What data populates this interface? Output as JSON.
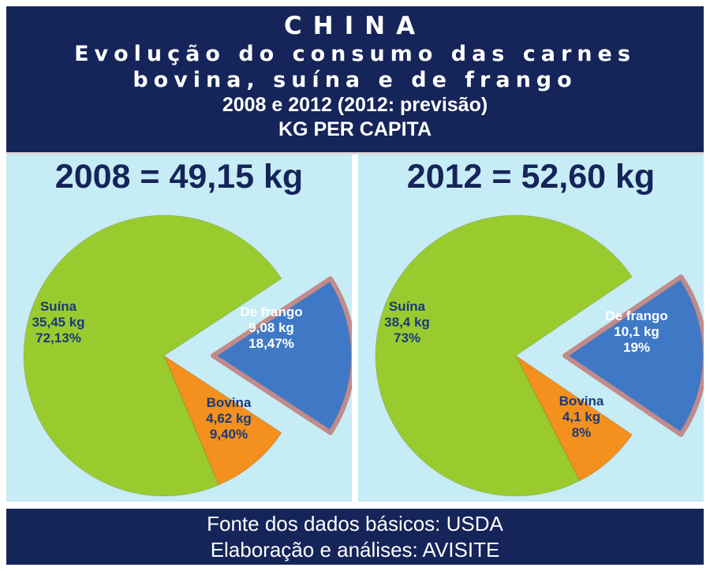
{
  "header": {
    "country": "CHINA",
    "line1": "Evolução do consumo das carnes",
    "line2": "bovina, suína e de frango",
    "line3": "2008 e 2012 (2012: previsão)",
    "line4": "KG PER CAPITA"
  },
  "footer": {
    "line1": "Fonte dos dados básicos: USDA",
    "line2": "Elaboração e análises: AVISITE"
  },
  "colors": {
    "suina": "#9acb2e",
    "frango": "#3f79c6",
    "bovina": "#f3901e",
    "header_bg": "#152459",
    "panel_bg": "#c6ecf5"
  },
  "chart_data": [
    {
      "type": "pie",
      "title": "2008 = 49,15 kg",
      "slices": [
        {
          "name": "De frango",
          "value": 18.47,
          "kg_label": "9,08 kg",
          "pct_label": "18,47%",
          "color": "#3f79c6",
          "exploded": true
        },
        {
          "name": "Bovina",
          "value": 9.4,
          "kg_label": "4,62 kg",
          "pct_label": "9,40%",
          "color": "#f3901e",
          "exploded": false
        },
        {
          "name": "Suína",
          "value": 72.13,
          "kg_label": "35,45 kg",
          "pct_label": "72,13%",
          "color": "#9acb2e",
          "exploded": false
        }
      ]
    },
    {
      "type": "pie",
      "title": "2012 = 52,60 kg",
      "slices": [
        {
          "name": "De frango",
          "value": 19,
          "kg_label": "10,1 kg",
          "pct_label": "19%",
          "color": "#3f79c6",
          "exploded": true
        },
        {
          "name": "Bovina",
          "value": 8,
          "kg_label": "4,1 kg",
          "pct_label": "8%",
          "color": "#f3901e",
          "exploded": false
        },
        {
          "name": "Suína",
          "value": 73,
          "kg_label": "38,4 kg",
          "pct_label": "73%",
          "color": "#9acb2e",
          "exploded": false
        }
      ]
    }
  ]
}
